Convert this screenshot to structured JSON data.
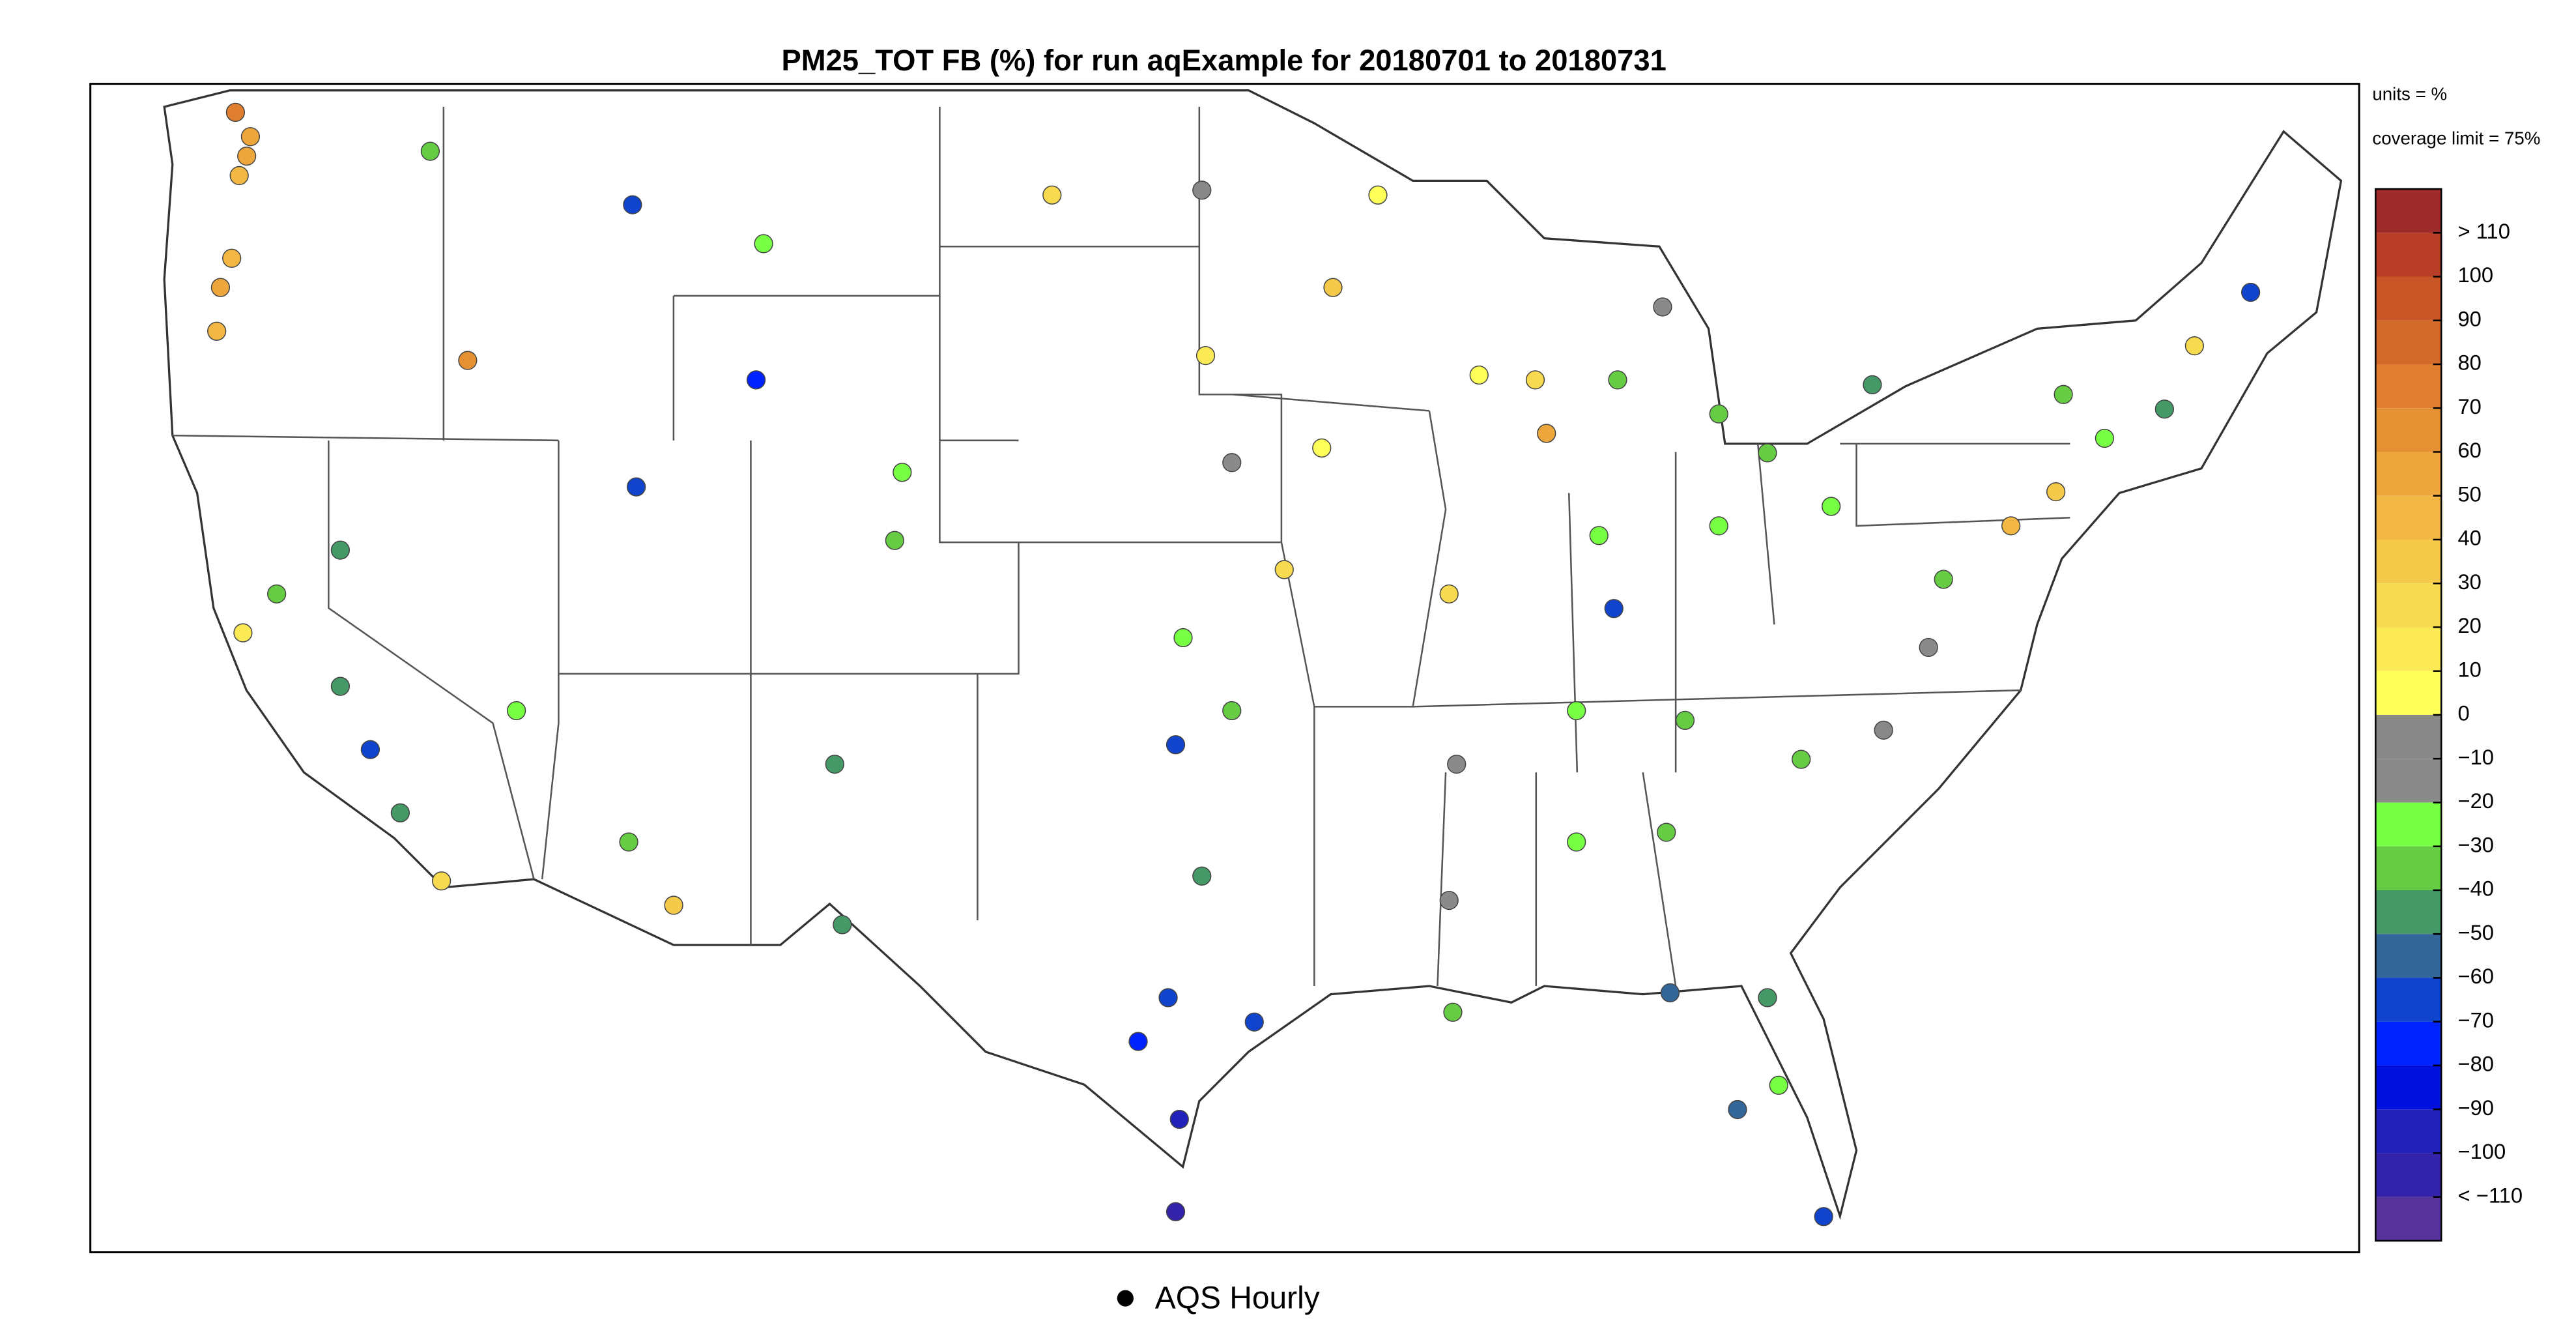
{
  "title": "PM25_TOT FB (%) for run aqExample for 20180701 to 20180731",
  "units_note": "units = %",
  "coverage_note": "coverage limit = 75%",
  "legend": {
    "label": "AQS Hourly"
  },
  "colorbar": {
    "colors": [
      "#9e2a2a",
      "#b83e28",
      "#c85526",
      "#d46a2a",
      "#de7e2e",
      "#e69034",
      "#eda63c",
      "#f2b843",
      "#f5c94a",
      "#f8da50",
      "#fbea56",
      "#ffff5a",
      "#888888",
      "#8a8a8a",
      "#77ff44",
      "#66cc44",
      "#449966",
      "#336699",
      "#1144cc",
      "#0022ff",
      "#0011dd",
      "#2222bb",
      "#3322aa",
      "#553399"
    ],
    "ticks": [
      {
        "value": 110,
        "label": "> 110"
      },
      100,
      90,
      80,
      70,
      60,
      50,
      40,
      30,
      20,
      10,
      0,
      {
        "value": -10,
        "label": "−10"
      },
      {
        "value": -20,
        "label": "−20"
      },
      {
        "value": -30,
        "label": "−30"
      },
      {
        "value": -40,
        "label": "−40"
      },
      {
        "value": -50,
        "label": "−50"
      },
      {
        "value": -60,
        "label": "−60"
      },
      {
        "value": -70,
        "label": "−70"
      },
      {
        "value": -80,
        "label": "−80"
      },
      {
        "value": -90,
        "label": "−90"
      },
      {
        "value": -100,
        "label": "−100"
      },
      {
        "value": -110,
        "label": "< −110"
      }
    ]
  },
  "stations": [
    {
      "lon": -122.3,
      "lat": 47.6,
      "value": 55
    },
    {
      "lon": -122.5,
      "lat": 47.2,
      "value": 45
    },
    {
      "lon": -122.2,
      "lat": 48.0,
      "value": 60
    },
    {
      "lon": -122.6,
      "lat": 48.5,
      "value": 80
    },
    {
      "lon": -122.7,
      "lat": 45.5,
      "value": 50
    },
    {
      "lon": -123.0,
      "lat": 44.9,
      "value": 55
    },
    {
      "lon": -123.1,
      "lat": 44.0,
      "value": 45
    },
    {
      "lon": -117.4,
      "lat": 47.7,
      "value": -30
    },
    {
      "lon": -116.4,
      "lat": 43.4,
      "value": 65
    },
    {
      "lon": -112.0,
      "lat": 46.6,
      "value": -60
    },
    {
      "lon": -108.5,
      "lat": 45.8,
      "value": -20
    },
    {
      "lon": -119.8,
      "lat": 39.5,
      "value": -40
    },
    {
      "lon": -121.5,
      "lat": 38.6,
      "value": -30
    },
    {
      "lon": -122.4,
      "lat": 37.8,
      "value": 20
    },
    {
      "lon": -119.8,
      "lat": 36.7,
      "value": -40
    },
    {
      "lon": -118.2,
      "lat": 34.1,
      "value": -45
    },
    {
      "lon": -117.1,
      "lat": 32.7,
      "value": 30
    },
    {
      "lon": -119.0,
      "lat": 35.4,
      "value": -60
    },
    {
      "lon": -111.9,
      "lat": 40.8,
      "value": -60
    },
    {
      "lon": -112.1,
      "lat": 33.5,
      "value": -30
    },
    {
      "lon": -110.9,
      "lat": 32.2,
      "value": 40
    },
    {
      "lon": -115.1,
      "lat": 36.2,
      "value": -20
    },
    {
      "lon": -105.0,
      "lat": 39.7,
      "value": -30
    },
    {
      "lon": -106.6,
      "lat": 35.1,
      "value": -40
    },
    {
      "lon": -106.4,
      "lat": 31.8,
      "value": -40
    },
    {
      "lon": -104.8,
      "lat": 41.1,
      "value": -20
    },
    {
      "lon": -108.7,
      "lat": 43.0,
      "value": -70
    },
    {
      "lon": -100.8,
      "lat": 46.8,
      "value": 30
    },
    {
      "lon": -96.8,
      "lat": 46.9,
      "value": 0
    },
    {
      "lon": -96.7,
      "lat": 43.5,
      "value": 20
    },
    {
      "lon": -93.3,
      "lat": 44.9,
      "value": 40
    },
    {
      "lon": -92.1,
      "lat": 46.8,
      "value": 10
    },
    {
      "lon": -96.0,
      "lat": 41.3,
      "value": -10
    },
    {
      "lon": -94.6,
      "lat": 39.1,
      "value": 30
    },
    {
      "lon": -97.3,
      "lat": 37.7,
      "value": -20
    },
    {
      "lon": -97.5,
      "lat": 35.5,
      "value": -60
    },
    {
      "lon": -96.0,
      "lat": 36.2,
      "value": -30
    },
    {
      "lon": -96.8,
      "lat": 32.8,
      "value": -40
    },
    {
      "lon": -95.4,
      "lat": 29.8,
      "value": -60
    },
    {
      "lon": -98.5,
      "lat": 29.4,
      "value": -70
    },
    {
      "lon": -97.7,
      "lat": 30.3,
      "value": -60
    },
    {
      "lon": -97.5,
      "lat": 25.9,
      "value": -100
    },
    {
      "lon": -97.4,
      "lat": 27.8,
      "value": -90
    },
    {
      "lon": -87.6,
      "lat": 41.9,
      "value": 60
    },
    {
      "lon": -87.9,
      "lat": 43.0,
      "value": 30
    },
    {
      "lon": -90.2,
      "lat": 38.6,
      "value": 30
    },
    {
      "lon": -86.2,
      "lat": 39.8,
      "value": -20
    },
    {
      "lon": -83.0,
      "lat": 42.3,
      "value": -30
    },
    {
      "lon": -83.0,
      "lat": 40.0,
      "value": -20
    },
    {
      "lon": -81.7,
      "lat": 41.5,
      "value": -30
    },
    {
      "lon": -80.0,
      "lat": 40.4,
      "value": -20
    },
    {
      "lon": -90.0,
      "lat": 35.1,
      "value": -10
    },
    {
      "lon": -86.8,
      "lat": 36.2,
      "value": -20
    },
    {
      "lon": -84.4,
      "lat": 33.7,
      "value": -30
    },
    {
      "lon": -86.8,
      "lat": 33.5,
      "value": -20
    },
    {
      "lon": -90.1,
      "lat": 30.0,
      "value": -30
    },
    {
      "lon": -90.2,
      "lat": 32.3,
      "value": -10
    },
    {
      "lon": -80.8,
      "lat": 35.2,
      "value": -30
    },
    {
      "lon": -78.6,
      "lat": 35.8,
      "value": 0
    },
    {
      "lon": -77.4,
      "lat": 37.5,
      "value": -10
    },
    {
      "lon": -77.0,
      "lat": 38.9,
      "value": -30
    },
    {
      "lon": -75.2,
      "lat": 40.0,
      "value": 50
    },
    {
      "lon": -74.0,
      "lat": 40.7,
      "value": 40
    },
    {
      "lon": -71.1,
      "lat": 42.4,
      "value": -40
    },
    {
      "lon": -72.7,
      "lat": 41.8,
      "value": -20
    },
    {
      "lon": -73.8,
      "lat": 42.7,
      "value": -30
    },
    {
      "lon": -78.9,
      "lat": 42.9,
      "value": -40
    },
    {
      "lon": -70.3,
      "lat": 43.7,
      "value": 30
    },
    {
      "lon": -68.8,
      "lat": 44.8,
      "value": -60
    },
    {
      "lon": -81.7,
      "lat": 30.3,
      "value": -40
    },
    {
      "lon": -82.5,
      "lat": 28.0,
      "value": -50
    },
    {
      "lon": -81.4,
      "lat": 28.5,
      "value": -20
    },
    {
      "lon": -80.2,
      "lat": 25.8,
      "value": -60
    },
    {
      "lon": -84.3,
      "lat": 30.4,
      "value": -50
    },
    {
      "lon": -84.5,
      "lat": 44.5,
      "value": -10
    },
    {
      "lon": -85.7,
      "lat": 43.0,
      "value": -30
    },
    {
      "lon": -85.8,
      "lat": 38.3,
      "value": -60
    },
    {
      "lon": -83.9,
      "lat": 36.0,
      "value": -30
    },
    {
      "lon": -93.6,
      "lat": 41.6,
      "value": 5
    },
    {
      "lon": -89.4,
      "lat": 43.1,
      "value": 5
    }
  ]
}
